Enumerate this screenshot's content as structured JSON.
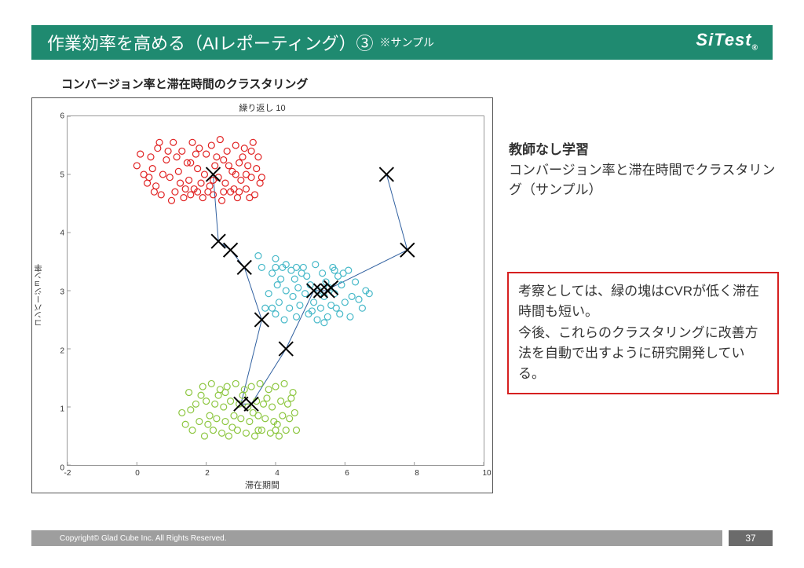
{
  "header": {
    "title": "作業効率を高める（AIレポーティング）③",
    "subtitle": "※サンプル",
    "logo_text": "SiTest",
    "bg_color": "#1f8a70",
    "fg_color": "#ffffff"
  },
  "subheader": "コンバージョン率と滞在時間のクラスタリング",
  "chart": {
    "type": "scatter",
    "title": "繰り返し 10",
    "xlabel": "滞在期間",
    "ylabel": "コンバージョン率",
    "xlim": [
      -2,
      10
    ],
    "ylim": [
      0,
      6
    ],
    "xtick_step": 2,
    "ytick_step": 1,
    "background_color": "#ffffff",
    "border_color": "#555555",
    "axis_color": "#999999",
    "tick_fontsize": 10,
    "label_fontsize": 11,
    "marker_radius": 4,
    "marker_stroke_width": 1.2,
    "cross_size": 9,
    "cross_stroke_width": 2,
    "line_color": "#3060a0",
    "line_width": 1,
    "clusters": [
      {
        "name": "red",
        "color": "#e02020",
        "points": [
          [
            0.1,
            5.35
          ],
          [
            0.3,
            4.85
          ],
          [
            0.45,
            5.1
          ],
          [
            0.6,
            5.45
          ],
          [
            0.7,
            4.65
          ],
          [
            0.85,
            5.25
          ],
          [
            0.95,
            4.95
          ],
          [
            1.05,
            5.55
          ],
          [
            1.1,
            4.7
          ],
          [
            1.2,
            5.05
          ],
          [
            1.3,
            5.4
          ],
          [
            1.35,
            4.6
          ],
          [
            1.45,
            5.2
          ],
          [
            1.5,
            4.9
          ],
          [
            1.6,
            5.55
          ],
          [
            1.65,
            4.75
          ],
          [
            1.75,
            5.1
          ],
          [
            1.8,
            5.45
          ],
          [
            1.9,
            4.6
          ],
          [
            1.95,
            5.0
          ],
          [
            2.0,
            5.35
          ],
          [
            2.1,
            4.8
          ],
          [
            2.15,
            5.5
          ],
          [
            2.2,
            4.65
          ],
          [
            2.25,
            5.15
          ],
          [
            2.35,
            4.95
          ],
          [
            2.4,
            5.6
          ],
          [
            2.45,
            4.55
          ],
          [
            2.5,
            5.25
          ],
          [
            2.55,
            4.85
          ],
          [
            2.6,
            5.4
          ],
          [
            2.7,
            4.7
          ],
          [
            2.75,
            5.05
          ],
          [
            2.85,
            5.5
          ],
          [
            2.9,
            4.6
          ],
          [
            2.95,
            5.2
          ],
          [
            3.0,
            4.9
          ],
          [
            3.1,
            5.45
          ],
          [
            3.15,
            4.75
          ],
          [
            3.2,
            5.15
          ],
          [
            3.3,
            4.95
          ],
          [
            3.35,
            5.55
          ],
          [
            3.4,
            4.65
          ],
          [
            3.5,
            5.3
          ],
          [
            3.55,
            4.85
          ],
          [
            0.2,
            5.0
          ],
          [
            0.55,
            4.8
          ],
          [
            0.9,
            5.4
          ],
          [
            1.15,
            5.3
          ],
          [
            1.4,
            4.75
          ],
          [
            1.7,
            5.35
          ],
          [
            2.05,
            4.7
          ],
          [
            2.3,
            5.3
          ],
          [
            2.65,
            5.15
          ],
          [
            3.05,
            5.3
          ],
          [
            3.25,
            4.6
          ],
          [
            3.45,
            5.1
          ],
          [
            0.0,
            5.15
          ],
          [
            0.75,
            5.0
          ],
          [
            1.55,
            4.65
          ],
          [
            2.8,
            4.75
          ],
          [
            3.6,
            4.95
          ],
          [
            0.4,
            5.3
          ],
          [
            1.0,
            4.55
          ],
          [
            1.85,
            4.85
          ],
          [
            2.95,
            4.7
          ],
          [
            0.65,
            5.55
          ],
          [
            1.25,
            4.85
          ],
          [
            2.2,
            4.9
          ],
          [
            3.15,
            5.0
          ],
          [
            0.5,
            4.7
          ],
          [
            1.55,
            5.2
          ],
          [
            2.5,
            4.7
          ],
          [
            0.35,
            4.95
          ],
          [
            1.75,
            4.7
          ],
          [
            2.85,
            5.0
          ],
          [
            3.3,
            5.4
          ]
        ]
      },
      {
        "name": "cyan",
        "color": "#45b8c8",
        "points": [
          [
            3.6,
            3.4
          ],
          [
            3.8,
            2.95
          ],
          [
            3.9,
            3.3
          ],
          [
            4.0,
            2.6
          ],
          [
            4.05,
            3.1
          ],
          [
            4.1,
            2.8
          ],
          [
            4.2,
            3.4
          ],
          [
            4.25,
            2.5
          ],
          [
            4.3,
            3.0
          ],
          [
            4.4,
            2.7
          ],
          [
            4.45,
            3.35
          ],
          [
            4.5,
            2.9
          ],
          [
            4.55,
            3.2
          ],
          [
            4.6,
            2.55
          ],
          [
            4.65,
            3.05
          ],
          [
            4.7,
            2.75
          ],
          [
            4.8,
            3.4
          ],
          [
            4.85,
            2.95
          ],
          [
            4.9,
            3.25
          ],
          [
            4.95,
            2.6
          ],
          [
            5.0,
            3.1
          ],
          [
            5.1,
            2.8
          ],
          [
            5.15,
            3.45
          ],
          [
            5.2,
            2.5
          ],
          [
            5.25,
            3.0
          ],
          [
            5.3,
            2.7
          ],
          [
            5.35,
            3.3
          ],
          [
            5.4,
            2.9
          ],
          [
            5.45,
            3.15
          ],
          [
            5.5,
            2.55
          ],
          [
            5.55,
            3.05
          ],
          [
            5.6,
            2.75
          ],
          [
            5.65,
            3.4
          ],
          [
            5.7,
            2.95
          ],
          [
            5.8,
            3.25
          ],
          [
            5.85,
            2.6
          ],
          [
            5.9,
            3.1
          ],
          [
            6.0,
            2.8
          ],
          [
            6.1,
            3.35
          ],
          [
            6.2,
            2.9
          ],
          [
            6.3,
            3.15
          ],
          [
            6.4,
            2.85
          ],
          [
            6.5,
            2.7
          ],
          [
            6.6,
            3.0
          ],
          [
            3.7,
            2.7
          ],
          [
            4.15,
            3.2
          ],
          [
            4.75,
            3.3
          ],
          [
            5.05,
            2.65
          ],
          [
            5.75,
            2.7
          ],
          [
            5.95,
            3.3
          ],
          [
            6.15,
            2.55
          ],
          [
            4.0,
            3.4
          ],
          [
            4.3,
            3.45
          ],
          [
            4.6,
            3.4
          ],
          [
            3.9,
            2.7
          ],
          [
            3.5,
            3.6
          ],
          [
            6.7,
            2.95
          ],
          [
            4.0,
            3.55
          ],
          [
            5.4,
            2.45
          ],
          [
            5.7,
            3.35
          ]
        ]
      },
      {
        "name": "green",
        "color": "#8cc63f",
        "points": [
          [
            1.3,
            0.9
          ],
          [
            1.5,
            1.25
          ],
          [
            1.6,
            0.6
          ],
          [
            1.7,
            1.05
          ],
          [
            1.8,
            0.75
          ],
          [
            1.9,
            1.35
          ],
          [
            1.95,
            0.5
          ],
          [
            2.0,
            1.1
          ],
          [
            2.1,
            0.85
          ],
          [
            2.15,
            1.4
          ],
          [
            2.2,
            0.6
          ],
          [
            2.25,
            1.05
          ],
          [
            2.3,
            0.8
          ],
          [
            2.4,
            1.3
          ],
          [
            2.45,
            0.55
          ],
          [
            2.5,
            1.0
          ],
          [
            2.55,
            0.75
          ],
          [
            2.6,
            1.35
          ],
          [
            2.65,
            0.5
          ],
          [
            2.7,
            1.1
          ],
          [
            2.8,
            0.85
          ],
          [
            2.85,
            1.4
          ],
          [
            2.9,
            0.6
          ],
          [
            2.95,
            1.05
          ],
          [
            3.0,
            0.8
          ],
          [
            3.1,
            1.3
          ],
          [
            3.15,
            0.55
          ],
          [
            3.2,
            1.0
          ],
          [
            3.25,
            0.75
          ],
          [
            3.3,
            1.35
          ],
          [
            3.4,
            0.5
          ],
          [
            3.45,
            1.1
          ],
          [
            3.5,
            0.85
          ],
          [
            3.55,
            1.4
          ],
          [
            3.6,
            0.6
          ],
          [
            3.65,
            1.05
          ],
          [
            3.7,
            0.8
          ],
          [
            3.8,
            1.3
          ],
          [
            3.85,
            0.55
          ],
          [
            3.9,
            1.0
          ],
          [
            3.95,
            0.75
          ],
          [
            4.0,
            1.35
          ],
          [
            4.1,
            0.5
          ],
          [
            4.15,
            1.1
          ],
          [
            4.2,
            0.85
          ],
          [
            4.25,
            1.4
          ],
          [
            4.3,
            0.6
          ],
          [
            4.35,
            1.05
          ],
          [
            4.4,
            0.8
          ],
          [
            4.5,
            1.25
          ],
          [
            1.4,
            0.7
          ],
          [
            1.85,
            1.2
          ],
          [
            2.35,
            1.2
          ],
          [
            2.75,
            0.65
          ],
          [
            3.35,
            0.9
          ],
          [
            3.75,
            1.15
          ],
          [
            4.05,
            0.7
          ],
          [
            4.45,
            1.15
          ],
          [
            1.55,
            0.95
          ],
          [
            2.05,
            0.7
          ],
          [
            2.55,
            1.25
          ],
          [
            3.05,
            1.2
          ],
          [
            3.5,
            0.6
          ],
          [
            4.0,
            0.6
          ],
          [
            4.55,
            0.9
          ],
          [
            4.6,
            0.6
          ]
        ]
      }
    ],
    "cross_points": [
      [
        2.2,
        5.0
      ],
      [
        2.35,
        3.85
      ],
      [
        2.7,
        3.7
      ],
      [
        3.1,
        3.4
      ],
      [
        5.1,
        3.0
      ],
      [
        5.3,
        3.0
      ],
      [
        5.5,
        3.0
      ],
      [
        5.6,
        3.05
      ],
      [
        3.6,
        2.5
      ],
      [
        3.0,
        1.05
      ],
      [
        3.3,
        1.05
      ],
      [
        4.3,
        2.0
      ],
      [
        7.2,
        5.0
      ],
      [
        7.8,
        3.7
      ]
    ],
    "path_points": [
      [
        2.2,
        5.0
      ],
      [
        2.35,
        3.85
      ],
      [
        2.7,
        3.7
      ],
      [
        3.1,
        3.4
      ],
      [
        3.6,
        2.5
      ],
      [
        3.0,
        1.05
      ],
      [
        3.3,
        1.05
      ],
      [
        4.3,
        2.0
      ],
      [
        5.1,
        3.0
      ],
      [
        5.3,
        3.0
      ],
      [
        5.5,
        3.0
      ],
      [
        5.6,
        3.05
      ],
      [
        7.8,
        3.7
      ],
      [
        7.2,
        5.0
      ]
    ]
  },
  "side_text": {
    "heading": "教師なし学習",
    "body": "コンバージョン率と滞在時間でクラスタリング（サンプル）"
  },
  "red_box": {
    "text": "考察としては、緑の塊はCVRが低く滞在時間も短い。\n今後、これらのクラスタリングに改善方法を自動で出すように研究開発している。",
    "border_color": "#d62020"
  },
  "footer": {
    "copyright": "Copyright© Glad Cube Inc. All Rights Reserved.",
    "page": "37",
    "bar_color": "#9e9e9e",
    "page_bg": "#6b6b6b"
  }
}
